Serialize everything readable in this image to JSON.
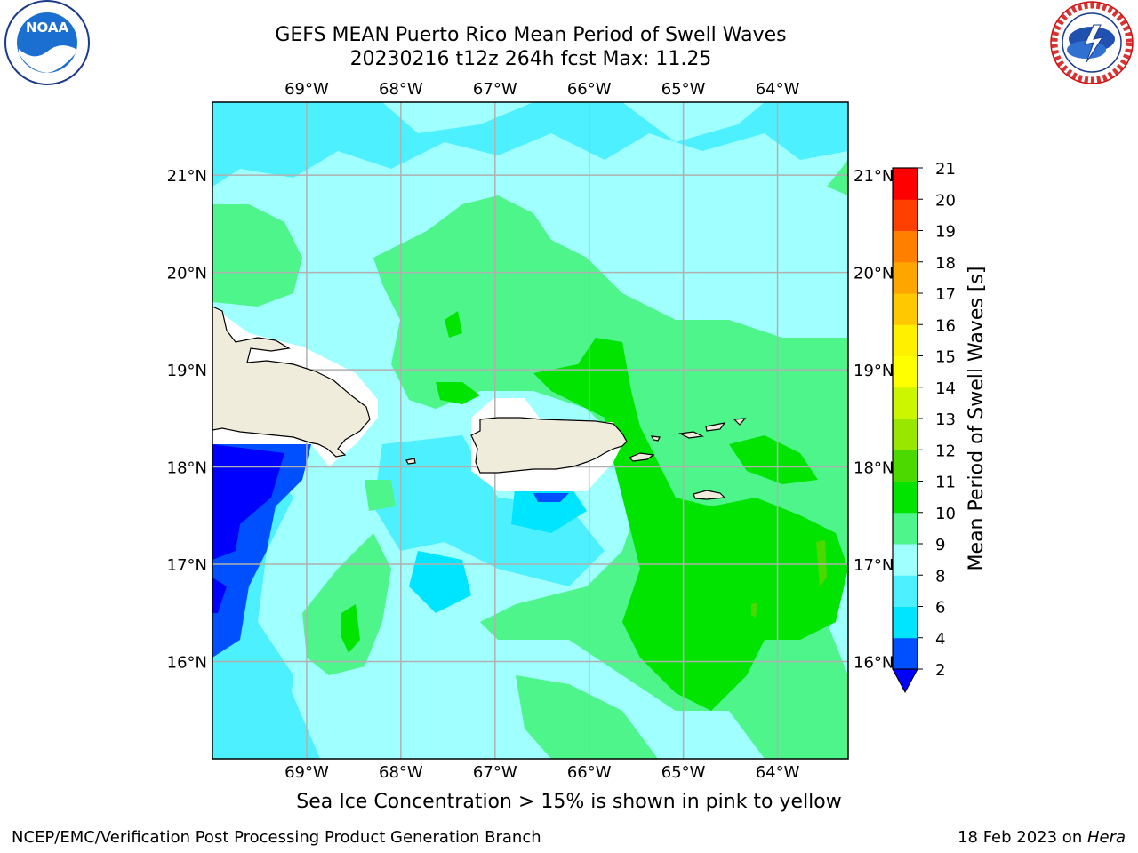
{
  "title": {
    "line1": "GEFS MEAN Puerto Rico Mean Period of Swell Waves",
    "line2": "20230216 t12z 264h fcst   Max: 11.25"
  },
  "map": {
    "lon_range": [
      -70.0,
      -63.25
    ],
    "lat_range": [
      15.0,
      21.75
    ],
    "lon_ticks": [
      {
        "value": -69,
        "label": "69°W"
      },
      {
        "value": -68,
        "label": "68°W"
      },
      {
        "value": -67,
        "label": "67°W"
      },
      {
        "value": -66,
        "label": "66°W"
      },
      {
        "value": -65,
        "label": "65°W"
      },
      {
        "value": -64,
        "label": "64°W"
      }
    ],
    "lat_ticks": [
      {
        "value": 21,
        "label": "21°N"
      },
      {
        "value": 20,
        "label": "20°N"
      },
      {
        "value": 19,
        "label": "19°N"
      },
      {
        "value": 18,
        "label": "18°N"
      },
      {
        "value": 17,
        "label": "17°N"
      },
      {
        "value": 16,
        "label": "16°N"
      }
    ],
    "colors": {
      "land": "#efecdc",
      "coast": "#000000",
      "grid": "#b0b0b0"
    }
  },
  "colorbar": {
    "label": "Mean Period of Swell Waves [s]",
    "ticks": [
      "2",
      "4",
      "6",
      "8",
      "9",
      "10",
      "11",
      "12",
      "13",
      "14",
      "15",
      "16",
      "17",
      "18",
      "19",
      "20",
      "21"
    ],
    "colors": [
      "#0050ff",
      "#00e5ff",
      "#4cf0ff",
      "#a0ffff",
      "#4df58a",
      "#00e400",
      "#4cd900",
      "#99e600",
      "#ccf500",
      "#ffff00",
      "#fff000",
      "#ffc800",
      "#ffa500",
      "#ff7f00",
      "#ff4000",
      "#ff0000"
    ],
    "under_color": "#0000ff"
  },
  "subtitle": "Sea Ice Concentration > 15% is shown in pink to yellow",
  "footer": {
    "left": "NCEP/EMC/Verification Post Processing Product Generation Branch",
    "date": "18 Feb 2023 on ",
    "host": "Hera"
  }
}
